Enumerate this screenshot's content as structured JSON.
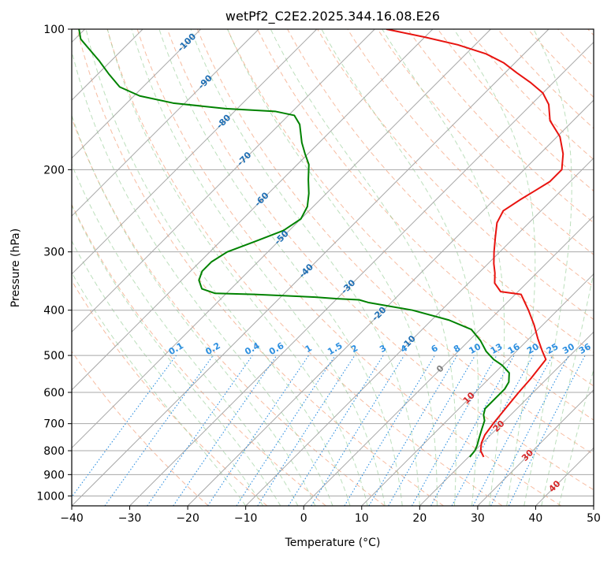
{
  "chart_data": {
    "type": "line",
    "chart_kind": "skew-t log-p diagram",
    "title": "wetPf2_C2E2.2025.344.16.08.E26",
    "xlabel": "Temperature (°C)",
    "ylabel": "Pressure (hPa)",
    "xlim": [
      -40,
      50
    ],
    "ylim": [
      1050,
      100
    ],
    "y_scale": "log",
    "grid": true,
    "x_ticks": [
      "−40",
      "−30",
      "−20",
      "−10",
      "0",
      "10",
      "20",
      "30",
      "40",
      "50"
    ],
    "y_ticks": [
      "100",
      "200",
      "300",
      "400",
      "500",
      "600",
      "700",
      "800",
      "900",
      "1000"
    ],
    "x_tick_values": [
      -40,
      -30,
      -20,
      -10,
      0,
      10,
      20,
      30,
      40,
      50
    ],
    "y_tick_values": [
      100,
      200,
      300,
      400,
      500,
      600,
      700,
      800,
      900,
      1000
    ],
    "isotherm_labels": [
      {
        "text": "-100",
        "t": -100,
        "p": 107
      },
      {
        "text": "-90",
        "t": -90,
        "p": 130
      },
      {
        "text": "-80",
        "t": -80,
        "p": 158
      },
      {
        "text": "-70",
        "t": -70,
        "p": 190
      },
      {
        "text": "-60",
        "t": -60,
        "p": 232
      },
      {
        "text": "-50",
        "t": -50,
        "p": 280
      },
      {
        "text": "-40",
        "t": -40,
        "p": 330
      },
      {
        "text": "-30",
        "t": -30,
        "p": 357
      },
      {
        "text": "-20",
        "t": -20,
        "p": 408
      },
      {
        "text": "-10",
        "t": -10,
        "p": 470
      },
      {
        "text": "0",
        "t": 0,
        "p": 535
      },
      {
        "text": "10",
        "t": 10,
        "p": 618
      },
      {
        "text": "20",
        "t": 20,
        "p": 710
      },
      {
        "text": "30",
        "t": 30,
        "p": 820
      },
      {
        "text": "40",
        "t": 40,
        "p": 955
      }
    ],
    "mixing_ratio_labels": [
      "0.1",
      "0.2",
      "0.4",
      "0.6",
      "1",
      "1.5",
      "2",
      "3",
      "4",
      "6",
      "8",
      "10",
      "13",
      "16",
      "20",
      "25",
      "30",
      "36"
    ],
    "mixing_ratio_values": [
      0.1,
      0.2,
      0.4,
      0.6,
      1,
      1.5,
      2,
      3,
      4,
      6,
      8,
      10,
      13,
      16,
      20,
      25,
      30,
      36
    ],
    "series": [
      {
        "kind": "temperature",
        "color": "#e8130f",
        "points": [
          [
            22.6,
            825
          ],
          [
            21.0,
            800
          ],
          [
            19.8,
            770
          ],
          [
            19.0,
            740
          ],
          [
            18.5,
            700
          ],
          [
            18.0,
            650
          ],
          [
            17.5,
            600
          ],
          [
            17.2,
            560
          ],
          [
            16.5,
            510
          ],
          [
            14.5,
            490
          ],
          [
            11.5,
            460
          ],
          [
            8.5,
            430
          ],
          [
            5.0,
            400
          ],
          [
            1.0,
            370
          ],
          [
            -3.0,
            365
          ],
          [
            -5.5,
            350
          ],
          [
            -7.2,
            333
          ],
          [
            -9.0,
            318
          ],
          [
            -11.0,
            300
          ],
          [
            -13.2,
            280
          ],
          [
            -15.5,
            260
          ],
          [
            -16.5,
            245
          ],
          [
            -15.5,
            232
          ],
          [
            -14.5,
            222
          ],
          [
            -13.5,
            212
          ],
          [
            -13.5,
            200
          ],
          [
            -16.0,
            185
          ],
          [
            -19.5,
            170
          ],
          [
            -24.0,
            157
          ],
          [
            -27.0,
            145
          ],
          [
            -30.0,
            137
          ],
          [
            -34.0,
            130
          ],
          [
            -38.0,
            124
          ],
          [
            -42.0,
            118
          ],
          [
            -46.5,
            113
          ],
          [
            -53.0,
            108
          ],
          [
            -60.0,
            104
          ],
          [
            -68.0,
            100
          ]
        ]
      },
      {
        "kind": "dewpoint",
        "color": "#008200",
        "points": [
          [
            20.2,
            825
          ],
          [
            20.0,
            800
          ],
          [
            19.5,
            780
          ],
          [
            18.5,
            750
          ],
          [
            17.5,
            720
          ],
          [
            16.5,
            690
          ],
          [
            15.3,
            670
          ],
          [
            14.5,
            650
          ],
          [
            14.5,
            620
          ],
          [
            14.5,
            590
          ],
          [
            14.0,
            570
          ],
          [
            12.5,
            545
          ],
          [
            10.0,
            525
          ],
          [
            7.5,
            510
          ],
          [
            4.8,
            490
          ],
          [
            2.0,
            465
          ],
          [
            -1.5,
            440
          ],
          [
            -7.0,
            420
          ],
          [
            -15.0,
            400
          ],
          [
            -24.0,
            385
          ],
          [
            -26.0,
            380
          ],
          [
            -30.0,
            378
          ],
          [
            -34.0,
            375
          ],
          [
            -45.0,
            370
          ],
          [
            -52.0,
            368
          ],
          [
            -55.0,
            360
          ],
          [
            -57.0,
            345
          ],
          [
            -58.0,
            330
          ],
          [
            -58.0,
            315
          ],
          [
            -57.0,
            300
          ],
          [
            -54.0,
            285
          ],
          [
            -51.0,
            270
          ],
          [
            -50.0,
            255
          ],
          [
            -51.0,
            240
          ],
          [
            -53.0,
            225
          ],
          [
            -55.5,
            210
          ],
          [
            -58.0,
            195
          ],
          [
            -60.5,
            185
          ],
          [
            -63.0,
            175
          ],
          [
            -66.5,
            160
          ],
          [
            -69.0,
            153
          ],
          [
            -73.0,
            150
          ],
          [
            -82.0,
            148
          ],
          [
            -92.0,
            144
          ],
          [
            -99.0,
            139
          ],
          [
            -104.0,
            133
          ],
          [
            -108.0,
            125
          ],
          [
            -112.0,
            117
          ],
          [
            -116.0,
            110
          ],
          [
            -119.0,
            105
          ],
          [
            -121.0,
            100
          ]
        ]
      }
    ]
  }
}
